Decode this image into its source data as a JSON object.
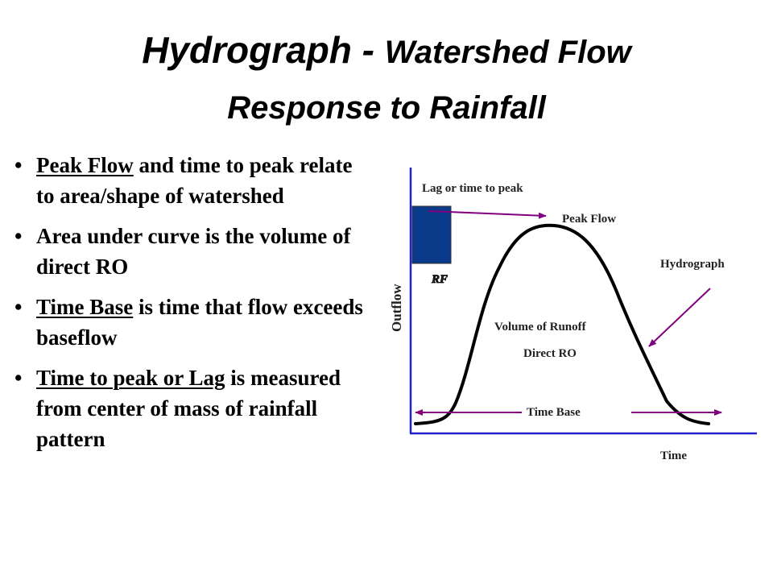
{
  "title": {
    "line1_part1": "Hydrograph - ",
    "line1_part2": "Watershed Flow",
    "line2": "Response to Rainfall"
  },
  "bullets": [
    {
      "underlined": "Peak Flow",
      "rest": " and time to peak relate to area/shape of watershed"
    },
    {
      "underlined": "",
      "rest": "Area under curve is the volume of direct RO"
    },
    {
      "underlined": "Time Base",
      "rest": " is time that flow exceeds baseflow"
    },
    {
      "underlined": "Time to peak or Lag",
      "rest": " is measured from center of mass of rainfall pattern"
    }
  ],
  "diagram": {
    "lag_label": "Lag or time to peak",
    "peak_flow_label": "Peak Flow",
    "hydrograph_label": "Hydrograph",
    "rf_label": "RF",
    "outflow_label": "Outflow",
    "volume_label": "Volume of Runoff",
    "direct_ro_label": "Direct RO",
    "time_base_label": "Time Base",
    "time_label": "Time",
    "colors": {
      "axis": "#2222cc",
      "arrow": "#800080",
      "rainfall_fill": "#0a3a8a",
      "curve": "#000000"
    }
  }
}
